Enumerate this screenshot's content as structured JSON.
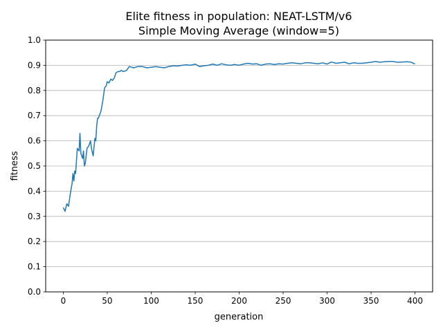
{
  "chart_data": {
    "type": "line",
    "title": "Elite fitness in population: NEAT-LSTM/v6",
    "subtitle": "Simple Moving Average (window=5)",
    "xlabel": "generation",
    "ylabel": "fitness",
    "xlim": [
      -20,
      420
    ],
    "ylim": [
      0.0,
      1.0
    ],
    "x_ticks": [
      0,
      50,
      100,
      150,
      200,
      250,
      300,
      350,
      400
    ],
    "x_tick_labels": [
      "0",
      "50",
      "100",
      "150",
      "200",
      "250",
      "300",
      "350",
      "400"
    ],
    "y_ticks": [
      0.0,
      0.1,
      0.2,
      0.3,
      0.4,
      0.5,
      0.6,
      0.7,
      0.8,
      0.9,
      1.0
    ],
    "y_tick_labels": [
      "0.0",
      "0.1",
      "0.2",
      "0.3",
      "0.4",
      "0.5",
      "0.6",
      "0.7",
      "0.8",
      "0.9",
      "1.0"
    ],
    "grid": "horizontal",
    "legend": "none",
    "line_color": "#1f77b4",
    "series": [
      {
        "x": [
          0,
          2,
          4,
          6,
          8,
          10,
          11,
          12,
          13,
          14,
          16,
          18,
          19,
          20,
          22,
          23,
          24,
          25,
          27,
          29,
          31,
          32,
          34,
          36,
          37,
          38,
          39,
          40,
          41,
          42,
          43,
          45,
          47,
          49,
          50,
          52,
          54,
          56,
          58,
          60,
          62,
          64,
          66,
          68,
          70,
          72,
          75,
          80,
          85,
          90,
          95,
          100,
          105,
          110,
          115,
          120,
          125,
          130,
          135,
          140,
          145,
          150,
          155,
          160,
          165,
          170,
          175,
          180,
          185,
          190,
          195,
          200,
          205,
          210,
          215,
          220,
          225,
          230,
          235,
          240,
          245,
          250,
          255,
          260,
          265,
          270,
          275,
          280,
          285,
          290,
          295,
          300,
          305,
          310,
          315,
          320,
          325,
          330,
          335,
          340,
          345,
          350,
          355,
          360,
          365,
          370,
          375,
          380,
          385,
          390,
          395,
          400
        ],
        "y": [
          0.335,
          0.32,
          0.35,
          0.34,
          0.39,
          0.43,
          0.47,
          0.44,
          0.48,
          0.47,
          0.57,
          0.56,
          0.63,
          0.55,
          0.53,
          0.56,
          0.5,
          0.51,
          0.57,
          0.58,
          0.6,
          0.57,
          0.54,
          0.61,
          0.6,
          0.66,
          0.69,
          0.69,
          0.7,
          0.71,
          0.72,
          0.76,
          0.81,
          0.82,
          0.835,
          0.83,
          0.845,
          0.84,
          0.85,
          0.87,
          0.875,
          0.875,
          0.88,
          0.875,
          0.877,
          0.88,
          0.895,
          0.89,
          0.895,
          0.895,
          0.89,
          0.892,
          0.895,
          0.892,
          0.89,
          0.895,
          0.898,
          0.897,
          0.9,
          0.902,
          0.9,
          0.905,
          0.895,
          0.898,
          0.9,
          0.905,
          0.9,
          0.906,
          0.902,
          0.9,
          0.903,
          0.9,
          0.905,
          0.908,
          0.905,
          0.906,
          0.9,
          0.905,
          0.906,
          0.903,
          0.906,
          0.905,
          0.908,
          0.91,
          0.908,
          0.906,
          0.91,
          0.91,
          0.908,
          0.906,
          0.91,
          0.905,
          0.913,
          0.908,
          0.91,
          0.912,
          0.906,
          0.91,
          0.908,
          0.908,
          0.91,
          0.912,
          0.915,
          0.912,
          0.914,
          0.915,
          0.915,
          0.912,
          0.913,
          0.914,
          0.913,
          0.905
        ]
      }
    ]
  }
}
